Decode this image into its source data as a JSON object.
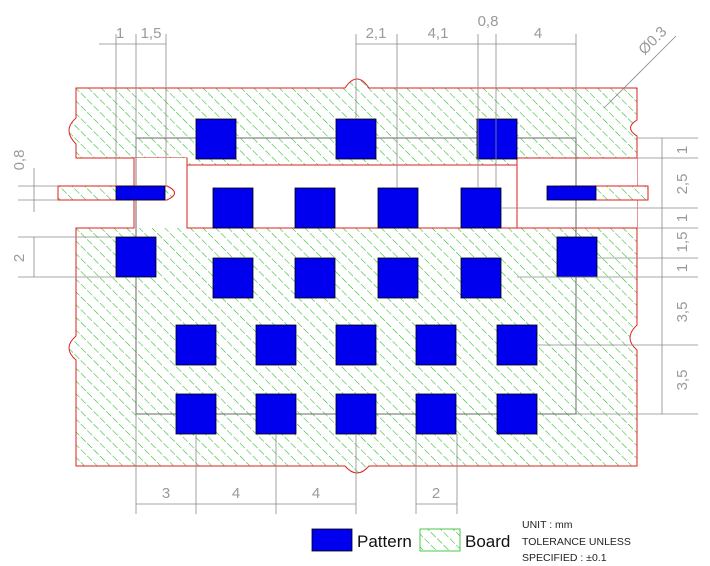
{
  "colors": {
    "pattern": "#0000ee",
    "board_hatch": "#22bb22",
    "board_outline": "#dd2222",
    "dimension": "#8a8a8a"
  },
  "dimensions": {
    "top": [
      "1",
      "1,5",
      "2,1",
      "4,1",
      "0,8",
      "4"
    ],
    "diameter": "Ø0.3",
    "left": [
      "0,8",
      "2"
    ],
    "right": [
      "1",
      "2,5",
      "1",
      "1,5",
      "1",
      "3,5",
      "3,5"
    ],
    "bottom": [
      "3",
      "4",
      "4",
      "2"
    ]
  },
  "legend": {
    "pattern_label": "Pattern",
    "board_label": "Board"
  },
  "notes": {
    "unit": "UNIT : mm",
    "tolerance_line1": "TOLERANCE UNLESS",
    "tolerance_line2": "SPECIFIED : ±0.1"
  }
}
